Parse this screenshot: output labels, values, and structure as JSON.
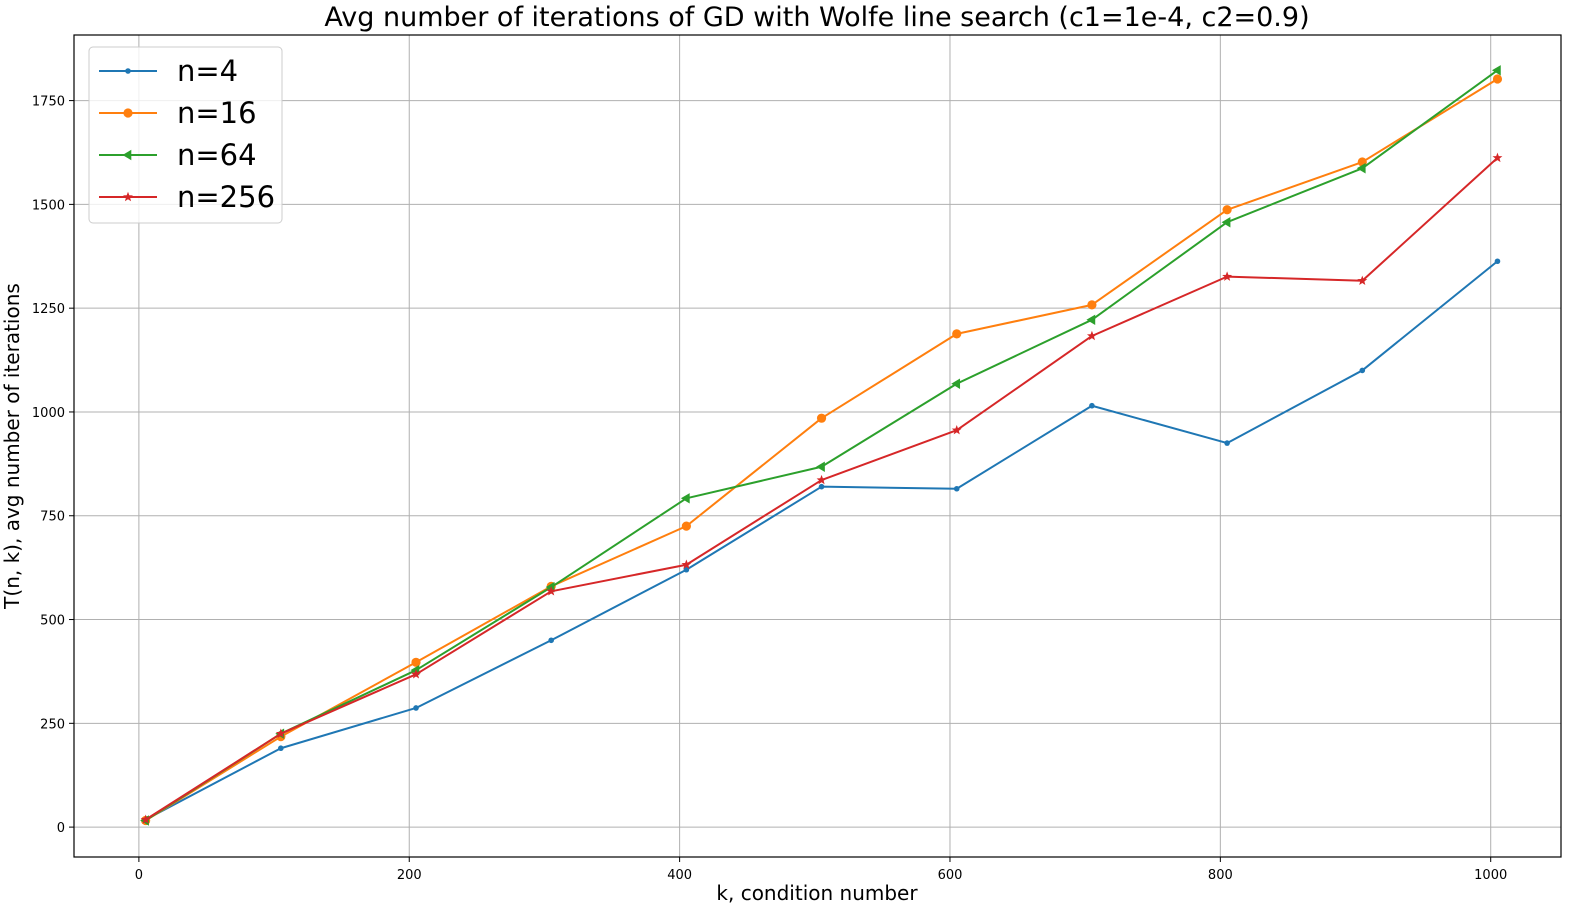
{
  "chart_data": {
    "type": "line",
    "title": "Avg number of iterations of GD with Wolfe line search (c1=1e-4, c2=0.9)",
    "xlabel": "k, condition number",
    "ylabel": "T(n, k), avg number of iterations",
    "x": [
      5,
      105,
      205,
      305,
      405,
      505,
      605,
      705,
      805,
      905,
      1005
    ],
    "xlim": [
      -48,
      1052
    ],
    "ylim": [
      -72,
      1908
    ],
    "xticks": [
      0,
      200,
      400,
      600,
      800,
      1000
    ],
    "xtick_labels": [
      "0",
      "200",
      "400",
      "600",
      "800",
      "1000"
    ],
    "yticks": [
      0,
      250,
      500,
      750,
      1000,
      1250,
      1500,
      1750
    ],
    "ytick_labels": [
      "0",
      "250",
      "500",
      "750",
      "1000",
      "1250",
      "1500",
      "1750"
    ],
    "grid": true,
    "legend_position": "upper-left",
    "series": [
      {
        "name": "n=4",
        "color": "#1f77b4",
        "marker": "point",
        "values": [
          18,
          190,
          287,
          450,
          620,
          820,
          815,
          1015,
          925,
          1100,
          1363
        ]
      },
      {
        "name": "n=16",
        "color": "#ff7f0e",
        "marker": "circle",
        "values": [
          16,
          218,
          397,
          580,
          725,
          985,
          1188,
          1258,
          1487,
          1602,
          1802
        ]
      },
      {
        "name": "n=64",
        "color": "#2ca02c",
        "marker": "triangle-left",
        "values": [
          16,
          225,
          378,
          578,
          792,
          868,
          1068,
          1222,
          1457,
          1587,
          1823
        ]
      },
      {
        "name": "n=256",
        "color": "#d62728",
        "marker": "star",
        "values": [
          18,
          225,
          368,
          568,
          632,
          836,
          956,
          1183,
          1326,
          1316,
          1612
        ]
      }
    ]
  }
}
